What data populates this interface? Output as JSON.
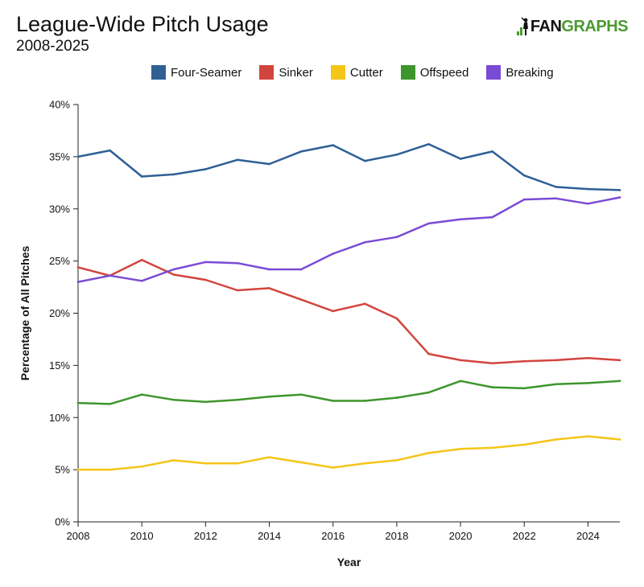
{
  "header": {
    "title": "League-Wide Pitch Usage",
    "subtitle": "2008-2025",
    "logo_fan": "FAN",
    "logo_graphs": "GRAPHS"
  },
  "chart_data": {
    "type": "line",
    "xlabel": "Year",
    "ylabel": "Percentage of All Pitches",
    "xlim": [
      2008,
      2025
    ],
    "ylim": [
      0,
      40
    ],
    "x_ticks": [
      2008,
      2010,
      2012,
      2014,
      2016,
      2018,
      2020,
      2022,
      2024
    ],
    "y_ticks": [
      "0%",
      "5%",
      "10%",
      "15%",
      "20%",
      "25%",
      "30%",
      "35%",
      "40%"
    ],
    "y_tick_values": [
      0,
      5,
      10,
      15,
      20,
      25,
      30,
      35,
      40
    ],
    "grid": false,
    "legend_position": "top",
    "x": [
      2008,
      2009,
      2010,
      2011,
      2012,
      2013,
      2014,
      2015,
      2016,
      2017,
      2018,
      2019,
      2020,
      2021,
      2022,
      2023,
      2024,
      2025
    ],
    "series": [
      {
        "name": "Four-Seamer",
        "color": "#2f5f95",
        "values": [
          35.0,
          35.6,
          33.1,
          33.3,
          33.8,
          34.7,
          34.3,
          35.5,
          36.1,
          34.6,
          35.2,
          36.2,
          34.8,
          35.5,
          33.2,
          32.1,
          31.9,
          31.8
        ]
      },
      {
        "name": "Sinker",
        "color": "#d2453e",
        "values": [
          24.4,
          23.6,
          25.1,
          23.7,
          23.2,
          22.2,
          22.4,
          21.3,
          20.2,
          20.9,
          19.5,
          16.1,
          15.5,
          15.2,
          15.4,
          15.5,
          15.7,
          15.5
        ]
      },
      {
        "name": "Cutter",
        "color": "#f5c518",
        "values": [
          5.0,
          5.0,
          5.3,
          5.9,
          5.6,
          5.6,
          6.2,
          5.7,
          5.2,
          5.6,
          5.9,
          6.6,
          7.0,
          7.1,
          7.4,
          7.9,
          8.2,
          7.9
        ]
      },
      {
        "name": "Offspeed",
        "color": "#3e952d",
        "values": [
          11.4,
          11.3,
          12.2,
          11.7,
          11.5,
          11.7,
          12.0,
          12.2,
          11.6,
          11.6,
          11.9,
          12.4,
          13.5,
          12.9,
          12.8,
          13.2,
          13.3,
          13.5
        ]
      },
      {
        "name": "Breaking",
        "color": "#7a4bd4",
        "values": [
          23.0,
          23.6,
          23.1,
          24.2,
          24.9,
          24.8,
          24.2,
          24.2,
          25.7,
          26.8,
          27.3,
          28.6,
          29.0,
          29.2,
          30.9,
          31.0,
          30.5,
          31.1
        ]
      }
    ]
  }
}
